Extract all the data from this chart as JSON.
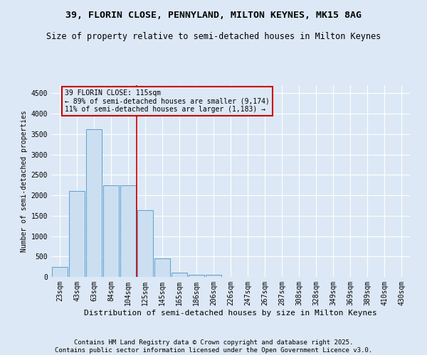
{
  "title1": "39, FLORIN CLOSE, PENNYLAND, MILTON KEYNES, MK15 8AG",
  "title2": "Size of property relative to semi-detached houses in Milton Keynes",
  "xlabel": "Distribution of semi-detached houses by size in Milton Keynes",
  "ylabel": "Number of semi-detached properties",
  "bar_labels": [
    "23sqm",
    "43sqm",
    "63sqm",
    "84sqm",
    "104sqm",
    "125sqm",
    "145sqm",
    "165sqm",
    "186sqm",
    "206sqm",
    "226sqm",
    "247sqm",
    "267sqm",
    "287sqm",
    "308sqm",
    "328sqm",
    "349sqm",
    "369sqm",
    "389sqm",
    "410sqm",
    "430sqm"
  ],
  "bar_values": [
    250,
    2100,
    3620,
    2250,
    2250,
    1640,
    450,
    100,
    55,
    50,
    0,
    0,
    0,
    0,
    0,
    0,
    0,
    0,
    0,
    0,
    0
  ],
  "bar_color": "#ccdff0",
  "bar_edge_color": "#5a9fd4",
  "vline_pos": 4.5,
  "vline_color": "#cc0000",
  "annotation_title": "39 FLORIN CLOSE: 115sqm",
  "annotation_line1": "← 89% of semi-detached houses are smaller (9,174)",
  "annotation_line2": "11% of semi-detached houses are larger (1,183) →",
  "annotation_box_color": "#cc0000",
  "ylim": [
    0,
    4700
  ],
  "yticks": [
    0,
    500,
    1000,
    1500,
    2000,
    2500,
    3000,
    3500,
    4000,
    4500
  ],
  "footer1": "Contains HM Land Registry data © Crown copyright and database right 2025.",
  "footer2": "Contains public sector information licensed under the Open Government Licence v3.0.",
  "bg_color": "#dce8f5",
  "plot_bg_color": "#dce8f5",
  "grid_color": "#ffffff",
  "title_fontsize": 9.5,
  "subtitle_fontsize": 8.5,
  "tick_fontsize": 7,
  "ylabel_fontsize": 7,
  "xlabel_fontsize": 8,
  "footer_fontsize": 6.5,
  "ann_fontsize": 7
}
